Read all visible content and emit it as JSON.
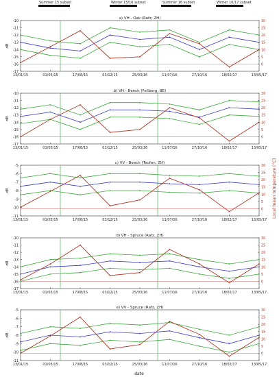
{
  "figure": {
    "subsets": [
      {
        "label": "Summer 15 subset"
      },
      {
        "label": "Winter 15/16 subset"
      },
      {
        "label": "Summer 16 subset"
      },
      {
        "label": "Winter 16/17 subset"
      }
    ],
    "x_ticks": [
      "13/01/15",
      "01/05/15",
      "17/08/15",
      "03/12/15",
      "25/03/16",
      "11/07/16",
      "27/10/16",
      "18/02/17",
      "13/05/17"
    ],
    "xlabel": "date",
    "right_ylabel": "Local mean temperature [°C]",
    "colors": {
      "mean": "#3c3cc8",
      "band": "#3aa83a",
      "temperature": "#b03a28",
      "event_line": "#4caf50",
      "zero_line": "#e06060",
      "dashed_event": "#c0392b"
    }
  },
  "chart_data": [
    {
      "type": "line",
      "title": "a) VH - Oak (Rafz, ZH)",
      "ylabel": "dB",
      "ylim": [
        -17,
        -10
      ],
      "y_ticks": [
        -10,
        -11,
        -12,
        -13,
        -14,
        -15,
        -16,
        -17
      ],
      "y2_ticks": [
        30,
        25,
        20,
        15,
        10,
        5,
        0
      ],
      "y2lim": [
        -5,
        30
      ],
      "x": [
        "13/01/15",
        "01/05/15",
        "17/08/15",
        "03/12/15",
        "25/03/16",
        "11/07/16",
        "27/10/16",
        "18/02/17",
        "13/05/17"
      ],
      "series": [
        {
          "role": "mean",
          "values": [
            -13.0,
            -13.8,
            -14.2,
            -12.0,
            -12.6,
            -12.3,
            -14.0,
            -12.3,
            -13.0
          ]
        },
        {
          "role": "upper",
          "values": [
            -12.0,
            -12.8,
            -13.2,
            -11.0,
            -11.6,
            -11.3,
            -13.0,
            -11.3,
            -12.0
          ]
        },
        {
          "role": "lower",
          "values": [
            -14.0,
            -14.8,
            -15.2,
            -13.0,
            -13.6,
            -13.3,
            -15.0,
            -13.3,
            -14.0
          ]
        },
        {
          "role": "temperature",
          "values": [
            1,
            12,
            23,
            4,
            5,
            21,
            14,
            -2,
            10
          ]
        }
      ]
    },
    {
      "type": "line",
      "title": "b) VH - Beech (Feilberg, BE)",
      "ylabel": "dB",
      "ylim": [
        -17,
        -10
      ],
      "y_ticks": [
        -10,
        -11,
        -12,
        -13,
        -14,
        -15,
        -16,
        -17
      ],
      "y2_ticks": [
        30,
        25,
        20,
        15,
        10,
        5,
        0
      ],
      "y2lim": [
        -5,
        30
      ],
      "x": [
        "13/01/15",
        "01/05/15",
        "17/08/15",
        "03/12/15",
        "25/03/16",
        "11/07/16",
        "27/10/16",
        "18/02/17",
        "13/05/17"
      ],
      "series": [
        {
          "role": "mean",
          "values": [
            -13.2,
            -12.6,
            -14.0,
            -12.3,
            -12.3,
            -12.5,
            -13.3,
            -12.0,
            -12.2
          ]
        },
        {
          "role": "upper",
          "values": [
            -12.2,
            -11.6,
            -13.0,
            -11.3,
            -11.3,
            -11.5,
            -12.3,
            -11.0,
            -11.2
          ]
        },
        {
          "role": "lower",
          "values": [
            -14.2,
            -13.6,
            -15.0,
            -13.3,
            -13.3,
            -13.5,
            -14.3,
            -13.0,
            -13.2
          ]
        },
        {
          "role": "temperature",
          "values": [
            0,
            12,
            22,
            3,
            5,
            20,
            13,
            -3,
            10
          ]
        }
      ]
    },
    {
      "type": "line",
      "title": "c) VV - Beech (Teufen, ZH)",
      "ylabel": "dB",
      "ylim": [
        -11,
        -5
      ],
      "y_ticks": [
        -5,
        -6,
        -7,
        -8,
        -9,
        -10,
        -11
      ],
      "y2_ticks": [
        30,
        25,
        20,
        15,
        10,
        5,
        0
      ],
      "y2lim": [
        -5,
        30
      ],
      "x": [
        "13/01/15",
        "01/05/15",
        "17/08/15",
        "03/12/15",
        "25/03/16",
        "11/07/16",
        "27/10/16",
        "18/02/17",
        "13/05/17"
      ],
      "series": [
        {
          "role": "mean",
          "values": [
            -7.5,
            -7.0,
            -7.5,
            -7.0,
            -7.0,
            -7.2,
            -7.3,
            -7.0,
            -7.3
          ]
        },
        {
          "role": "upper",
          "values": [
            -6.5,
            -6.0,
            -6.5,
            -6.0,
            -6.0,
            -6.2,
            -6.3,
            -6.0,
            -6.3
          ]
        },
        {
          "role": "lower",
          "values": [
            -8.5,
            -8.0,
            -8.5,
            -8.0,
            -8.0,
            -8.2,
            -8.3,
            -8.0,
            -8.3
          ]
        },
        {
          "role": "temperature",
          "values": [
            1,
            12,
            23,
            2,
            6,
            21,
            13,
            -2,
            11
          ]
        }
      ]
    },
    {
      "type": "line",
      "title": "d) VH - Spruce (Rafz, ZH)",
      "ylabel": "dB",
      "ylim": [
        -17,
        -10
      ],
      "y_ticks": [
        -10,
        -11,
        -12,
        -13,
        -14,
        -15,
        -16,
        -17
      ],
      "y2_ticks": [
        30,
        25,
        20,
        15,
        10,
        5,
        0
      ],
      "y2lim": [
        -5,
        30
      ],
      "x": [
        "13/01/15",
        "01/05/15",
        "17/08/15",
        "03/12/15",
        "25/03/16",
        "11/07/16",
        "27/10/16",
        "18/02/17",
        "13/05/17"
      ],
      "series": [
        {
          "role": "mean",
          "values": [
            -15.0,
            -14.0,
            -13.8,
            -13.2,
            -13.4,
            -13.2,
            -14.0,
            -14.6,
            -14.0
          ]
        },
        {
          "role": "upper",
          "values": [
            -14.0,
            -13.0,
            -12.8,
            -12.2,
            -12.4,
            -12.2,
            -13.0,
            -13.6,
            -13.0
          ]
        },
        {
          "role": "lower",
          "values": [
            -16.0,
            -15.0,
            -14.8,
            -14.2,
            -14.4,
            -14.2,
            -15.0,
            -15.6,
            -15.0
          ]
        },
        {
          "role": "temperature",
          "values": [
            1,
            12,
            25,
            4,
            6,
            22,
            12,
            -1,
            12
          ]
        }
      ]
    },
    {
      "type": "line",
      "title": "e) VV - Spruce (Rafz, ZH)",
      "ylabel": "dB",
      "ylim": [
        -11,
        -5
      ],
      "y_ticks": [
        -5,
        -6,
        -7,
        -8,
        -9,
        -10,
        -11
      ],
      "y2_ticks": [
        30,
        25,
        20,
        15,
        10,
        5,
        0
      ],
      "y2lim": [
        -5,
        30
      ],
      "x": [
        "13/01/15",
        "01/05/15",
        "17/08/15",
        "03/12/15",
        "25/03/16",
        "11/07/16",
        "27/10/16",
        "18/02/17",
        "13/05/17"
      ],
      "series": [
        {
          "role": "mean",
          "values": [
            -8.8,
            -8.0,
            -8.2,
            -7.6,
            -7.8,
            -7.5,
            -8.3,
            -9.0,
            -8.0
          ]
        },
        {
          "role": "upper",
          "values": [
            -7.8,
            -7.0,
            -7.2,
            -6.6,
            -6.8,
            -6.5,
            -7.3,
            -8.0,
            -7.0
          ]
        },
        {
          "role": "lower",
          "values": [
            -9.8,
            -9.0,
            -9.2,
            -8.6,
            -8.8,
            -8.5,
            -9.3,
            -10.0,
            -9.0
          ]
        },
        {
          "role": "temperature",
          "values": [
            0,
            12,
            25,
            3,
            6,
            22,
            13,
            -2,
            11
          ]
        }
      ]
    }
  ]
}
